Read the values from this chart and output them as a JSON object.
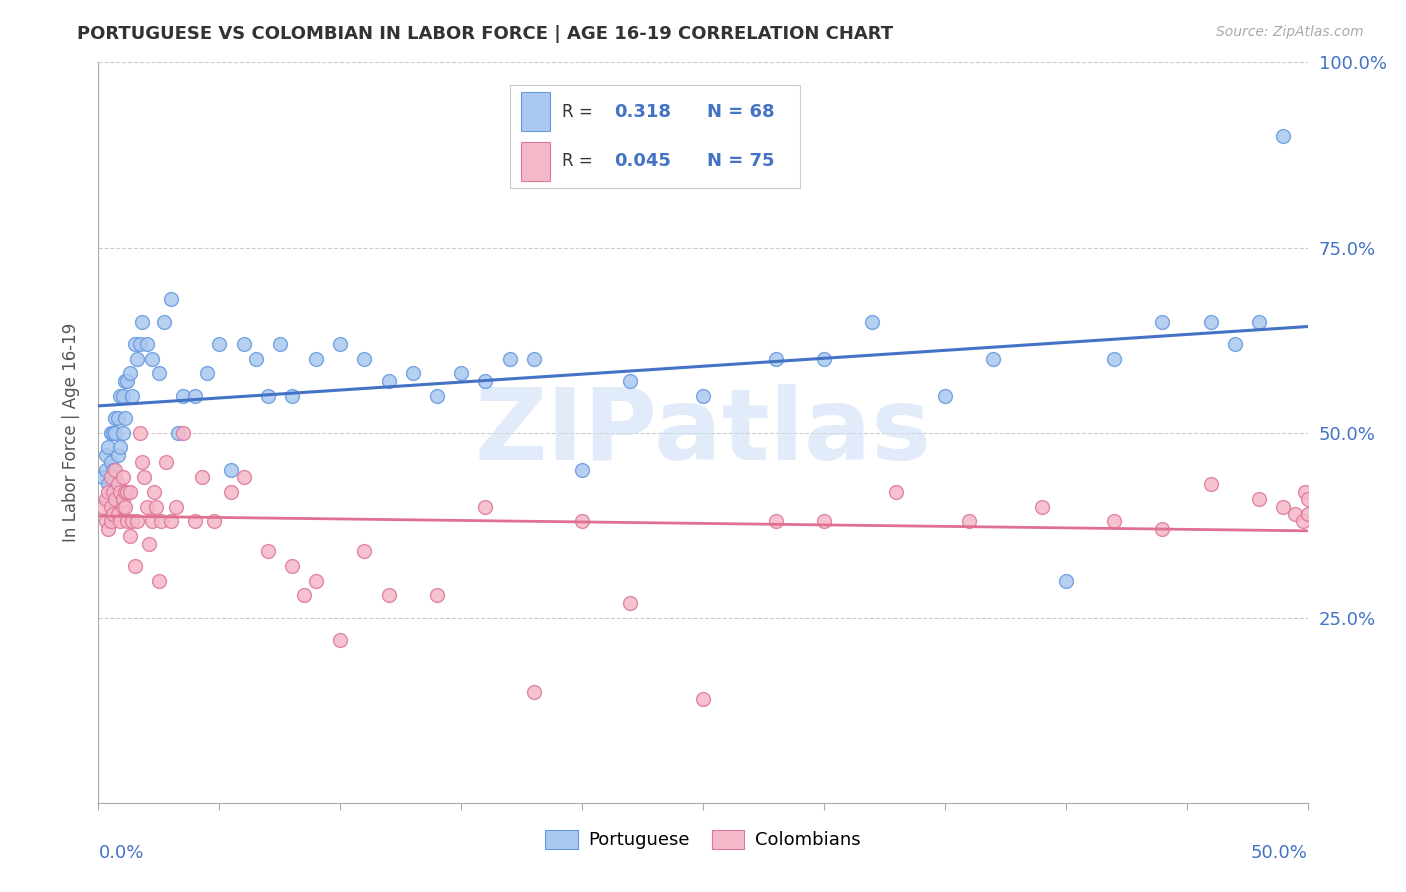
{
  "title": "PORTUGUESE VS COLOMBIAN IN LABOR FORCE | AGE 16-19 CORRELATION CHART",
  "source": "Source: ZipAtlas.com",
  "ylabel": "In Labor Force | Age 16-19",
  "xmin": 0.0,
  "xmax": 0.5,
  "ymin": 0.0,
  "ymax": 1.0,
  "yticks": [
    0.0,
    0.25,
    0.5,
    0.75,
    1.0
  ],
  "ytick_labels": [
    "",
    "25.0%",
    "50.0%",
    "75.0%",
    "100.0%"
  ],
  "portuguese_color": "#aac8f0",
  "portuguese_edge_color": "#6699dd",
  "colombian_color": "#f5b8c8",
  "colombian_edge_color": "#dd7799",
  "portuguese_line_color": "#4472c4",
  "colombian_line_color": "#e07090",
  "watermark_color": "#d0dff5",
  "legend_r_color": "#333333",
  "legend_val_color": "#4472c4",
  "portuguese_x": [
    0.002,
    0.003,
    0.003,
    0.004,
    0.004,
    0.005,
    0.005,
    0.006,
    0.006,
    0.007,
    0.007,
    0.007,
    0.008,
    0.008,
    0.009,
    0.009,
    0.01,
    0.01,
    0.011,
    0.011,
    0.012,
    0.013,
    0.014,
    0.015,
    0.016,
    0.017,
    0.018,
    0.02,
    0.022,
    0.025,
    0.027,
    0.03,
    0.033,
    0.035,
    0.04,
    0.045,
    0.05,
    0.055,
    0.06,
    0.065,
    0.07,
    0.075,
    0.08,
    0.09,
    0.1,
    0.11,
    0.12,
    0.13,
    0.14,
    0.15,
    0.16,
    0.17,
    0.18,
    0.2,
    0.22,
    0.25,
    0.28,
    0.3,
    0.32,
    0.35,
    0.37,
    0.4,
    0.42,
    0.44,
    0.46,
    0.47,
    0.48,
    0.49
  ],
  "portuguese_y": [
    0.44,
    0.45,
    0.47,
    0.43,
    0.48,
    0.46,
    0.5,
    0.45,
    0.5,
    0.44,
    0.5,
    0.52,
    0.47,
    0.52,
    0.48,
    0.55,
    0.5,
    0.55,
    0.52,
    0.57,
    0.57,
    0.58,
    0.55,
    0.62,
    0.6,
    0.62,
    0.65,
    0.62,
    0.6,
    0.58,
    0.65,
    0.68,
    0.5,
    0.55,
    0.55,
    0.58,
    0.62,
    0.45,
    0.62,
    0.6,
    0.55,
    0.62,
    0.55,
    0.6,
    0.62,
    0.6,
    0.57,
    0.58,
    0.55,
    0.58,
    0.57,
    0.6,
    0.6,
    0.45,
    0.57,
    0.55,
    0.6,
    0.6,
    0.65,
    0.55,
    0.6,
    0.3,
    0.6,
    0.65,
    0.65,
    0.62,
    0.65,
    0.9
  ],
  "colombian_x": [
    0.002,
    0.003,
    0.003,
    0.004,
    0.004,
    0.005,
    0.005,
    0.005,
    0.006,
    0.006,
    0.007,
    0.007,
    0.008,
    0.008,
    0.009,
    0.009,
    0.01,
    0.01,
    0.01,
    0.011,
    0.011,
    0.012,
    0.012,
    0.013,
    0.013,
    0.014,
    0.015,
    0.016,
    0.017,
    0.018,
    0.019,
    0.02,
    0.021,
    0.022,
    0.023,
    0.024,
    0.025,
    0.026,
    0.028,
    0.03,
    0.032,
    0.035,
    0.04,
    0.043,
    0.048,
    0.055,
    0.06,
    0.07,
    0.08,
    0.085,
    0.09,
    0.1,
    0.11,
    0.12,
    0.14,
    0.16,
    0.18,
    0.2,
    0.22,
    0.25,
    0.28,
    0.3,
    0.33,
    0.36,
    0.39,
    0.42,
    0.44,
    0.46,
    0.48,
    0.49,
    0.495,
    0.498,
    0.499,
    0.5,
    0.5
  ],
  "colombian_y": [
    0.4,
    0.41,
    0.38,
    0.37,
    0.42,
    0.44,
    0.4,
    0.38,
    0.42,
    0.39,
    0.45,
    0.41,
    0.43,
    0.39,
    0.42,
    0.38,
    0.4,
    0.44,
    0.41,
    0.42,
    0.4,
    0.38,
    0.42,
    0.36,
    0.42,
    0.38,
    0.32,
    0.38,
    0.5,
    0.46,
    0.44,
    0.4,
    0.35,
    0.38,
    0.42,
    0.4,
    0.3,
    0.38,
    0.46,
    0.38,
    0.4,
    0.5,
    0.38,
    0.44,
    0.38,
    0.42,
    0.44,
    0.34,
    0.32,
    0.28,
    0.3,
    0.22,
    0.34,
    0.28,
    0.28,
    0.4,
    0.15,
    0.38,
    0.27,
    0.14,
    0.38,
    0.38,
    0.42,
    0.38,
    0.4,
    0.38,
    0.37,
    0.43,
    0.41,
    0.4,
    0.39,
    0.38,
    0.42,
    0.41,
    0.39
  ]
}
